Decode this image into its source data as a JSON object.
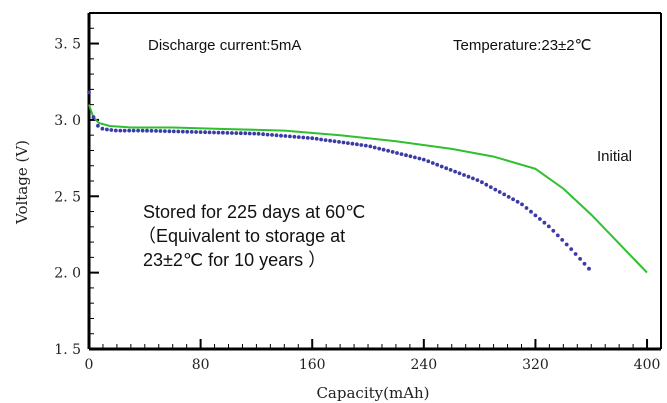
{
  "chart_data": {
    "type": "line",
    "xlabel": "Capacity(mAh)",
    "ylabel": "Voltage (V)",
    "xlim": [
      0,
      410
    ],
    "ylim": [
      1.5,
      3.7
    ],
    "x_ticks": [
      0,
      80,
      160,
      240,
      320,
      400
    ],
    "x_tick_labels": [
      "0",
      "80",
      "160",
      "240",
      "320",
      "400"
    ],
    "y_ticks": [
      1.5,
      2.0,
      2.5,
      3.0,
      3.5
    ],
    "y_tick_labels": [
      "1. 5",
      "2. 0",
      "2. 5",
      "3. 0",
      "3. 5"
    ],
    "grid": false,
    "colors": {
      "initial": "#2ec02e",
      "stored": "#3b3ba8",
      "axis": "#000000"
    },
    "annotations": {
      "discharge": "Discharge current:5mA",
      "temperature": "Temperature:23±2℃",
      "initial_label": "Initial",
      "stored_line1": "Stored for 225 days at 60℃",
      "stored_line2": "（Equivalent to storage at",
      "stored_line3": "23±2℃ for 10 years ）"
    },
    "series": [
      {
        "name": "Initial",
        "style": "solid",
        "x": [
          0,
          3,
          7,
          15,
          30,
          60,
          100,
          140,
          180,
          220,
          260,
          290,
          320,
          340,
          360,
          380,
          400
        ],
        "y": [
          3.1,
          3.02,
          2.98,
          2.96,
          2.95,
          2.95,
          2.94,
          2.93,
          2.9,
          2.86,
          2.81,
          2.76,
          2.68,
          2.55,
          2.38,
          2.19,
          2.0
        ]
      },
      {
        "name": "Stored for 225 days at 60℃",
        "style": "dotted",
        "x": [
          0,
          2,
          5,
          10,
          20,
          40,
          80,
          120,
          160,
          200,
          240,
          280,
          310,
          330,
          345,
          355,
          361
        ],
        "y": [
          3.18,
          3.05,
          2.97,
          2.94,
          2.93,
          2.93,
          2.92,
          2.91,
          2.88,
          2.83,
          2.74,
          2.6,
          2.45,
          2.3,
          2.16,
          2.06,
          2.0
        ]
      }
    ]
  }
}
